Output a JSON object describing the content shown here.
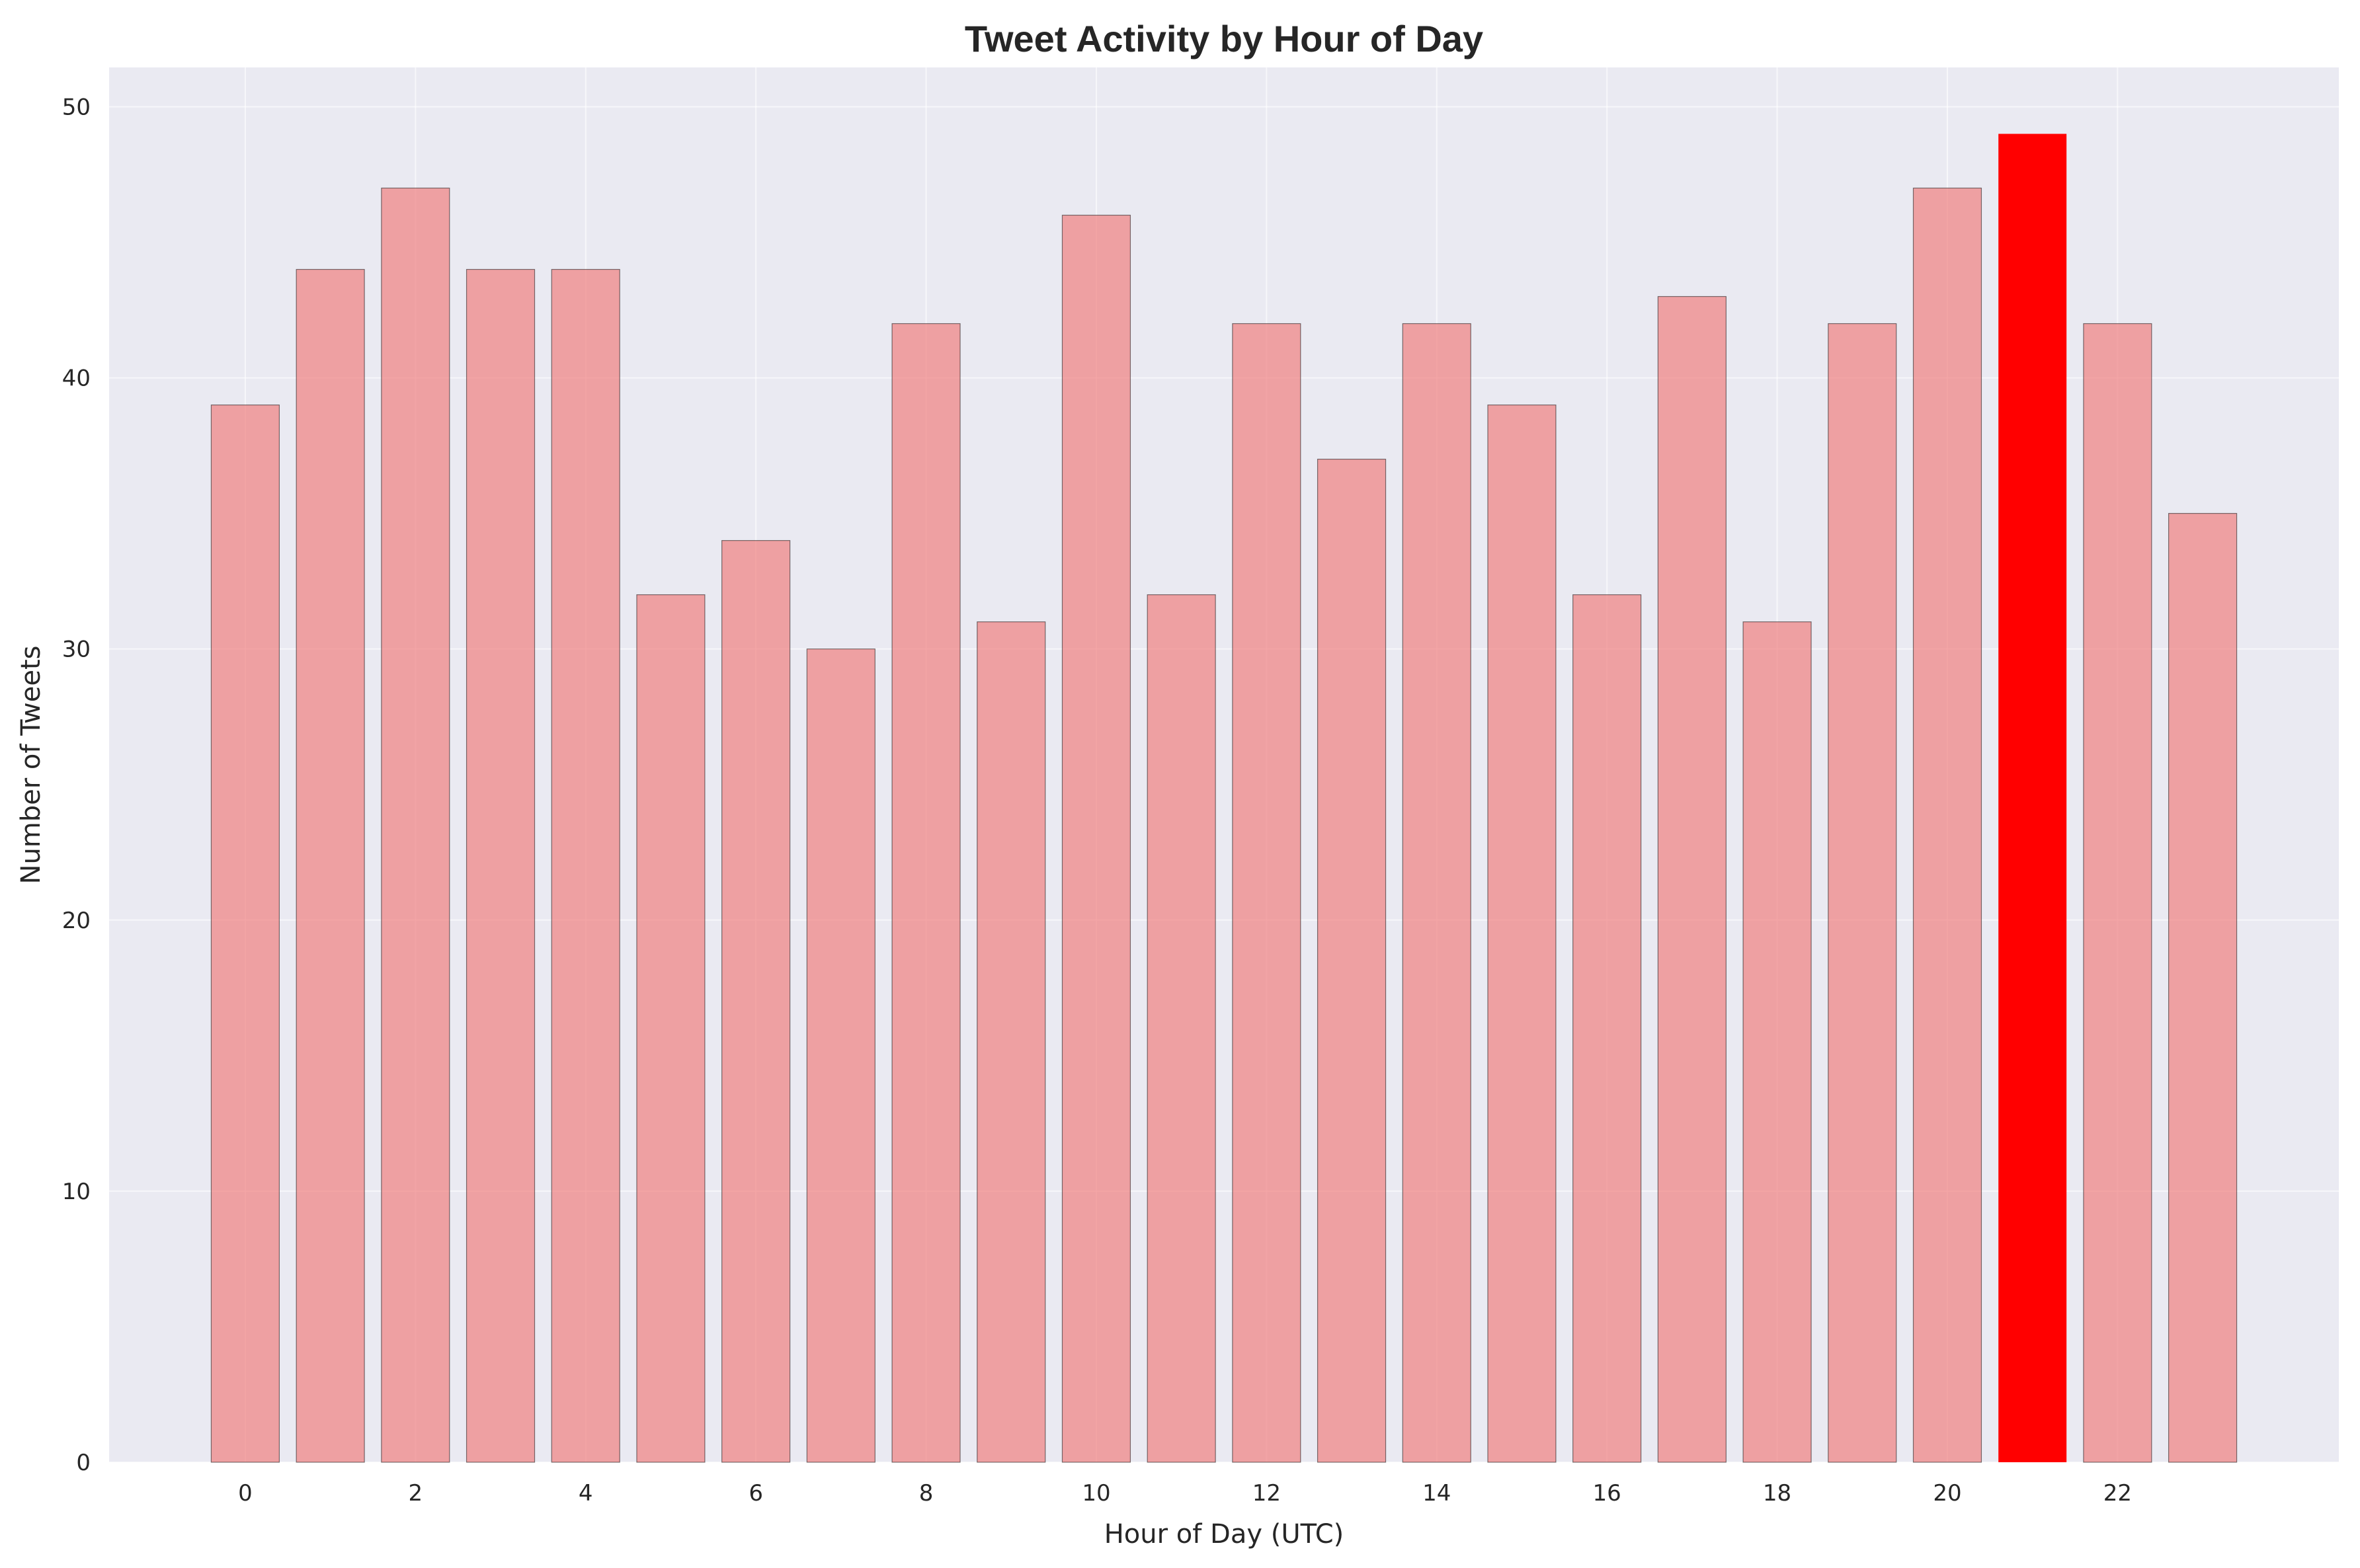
{
  "chart_data": {
    "type": "bar",
    "title": "Tweet Activity by Hour of Day",
    "xlabel": "Hour of Day (UTC)",
    "ylabel": "Number of Tweets",
    "categories": [
      0,
      1,
      2,
      3,
      4,
      5,
      6,
      7,
      8,
      9,
      10,
      11,
      12,
      13,
      14,
      15,
      16,
      17,
      18,
      19,
      20,
      21,
      22,
      23
    ],
    "values": [
      39,
      44,
      47,
      44,
      44,
      32,
      34,
      30,
      42,
      31,
      46,
      32,
      42,
      37,
      42,
      39,
      32,
      43,
      31,
      42,
      47,
      49,
      42,
      35
    ],
    "highlight_index": 21,
    "x_ticks": [
      0,
      2,
      4,
      6,
      8,
      10,
      12,
      14,
      16,
      18,
      20,
      22
    ],
    "y_ticks": [
      0,
      10,
      20,
      30,
      40,
      50
    ],
    "xlim": [
      -1.6,
      24.6
    ],
    "ylim": [
      0,
      51.45
    ],
    "grid": true,
    "legend": "none",
    "colors": {
      "bar": "#f08080",
      "bar_alpha": 0.7,
      "bar_edge": "#000000",
      "highlight": "#ff0000",
      "plot_background": "#eaeaf2",
      "grid": "#ffffff"
    }
  }
}
